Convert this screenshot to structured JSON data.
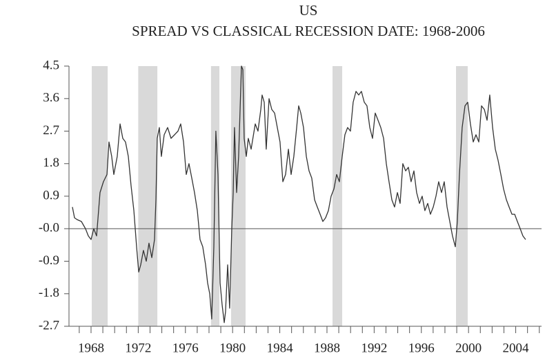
{
  "chart_data": {
    "type": "line",
    "title": "US",
    "subtitle": "SPREAD VS CLASSICAL RECESSION DATE: 1968-2006",
    "shaded_periods": [
      [
        1968.06,
        1969.41
      ],
      [
        1972.0,
        1973.62
      ],
      [
        1978.17,
        1978.88
      ],
      [
        1979.87,
        1981.1
      ],
      [
        1988.47,
        1989.29
      ],
      [
        1998.94,
        1999.93
      ]
    ],
    "shade_color": "#d9d9d9",
    "xlim": [
      1966.13,
      2006.19
    ],
    "xticks": [
      1968,
      1972,
      1976,
      1980,
      1984,
      1988,
      1992,
      1996,
      2000,
      2004
    ],
    "xminorticks": [
      1967,
      1968,
      1969,
      1970,
      1971,
      1972,
      1973,
      1974,
      1975,
      1976,
      1977,
      1978,
      1979,
      1980,
      1981,
      1982,
      1983,
      1984,
      1985,
      1986,
      1987,
      1988,
      1989,
      1990,
      1991,
      1992,
      1993,
      1994,
      1995,
      1996,
      1997,
      1998,
      1999,
      2000,
      2001,
      2002,
      2003,
      2004,
      2005,
      2006
    ],
    "ylim": [
      -2.7,
      4.5
    ],
    "yticks": [
      4.5,
      3.6,
      2.7,
      1.8,
      0.9,
      {
        "value": 0,
        "label": "-0.0"
      },
      -0.9,
      -1.8,
      -2.7
    ],
    "x": [
      1966.42,
      1966.6,
      1966.83,
      1967.18,
      1967.53,
      1967.77,
      1968.0,
      1968.23,
      1968.47,
      1968.76,
      1969.05,
      1969.35,
      1969.52,
      1969.75,
      1969.93,
      1970.22,
      1970.46,
      1970.69,
      1970.92,
      1971.16,
      1971.39,
      1971.63,
      1971.86,
      1972.04,
      1972.21,
      1972.44,
      1972.68,
      1972.91,
      1973.15,
      1973.38,
      1973.5,
      1973.61,
      1973.79,
      1973.96,
      1974.2,
      1974.49,
      1974.78,
      1975.08,
      1975.37,
      1975.6,
      1975.84,
      1976.07,
      1976.3,
      1976.54,
      1976.77,
      1977.01,
      1977.24,
      1977.47,
      1977.71,
      1977.88,
      1978.06,
      1978.23,
      1978.41,
      1978.58,
      1978.76,
      1978.94,
      1979.11,
      1979.29,
      1979.4,
      1979.58,
      1979.75,
      1979.93,
      1980.05,
      1980.16,
      1980.34,
      1980.51,
      1980.75,
      1980.87,
      1980.98,
      1981.16,
      1981.33,
      1981.57,
      1981.92,
      1982.15,
      1982.39,
      1982.5,
      1982.68,
      1982.85,
      1983.09,
      1983.32,
      1983.56,
      1983.79,
      1984.02,
      1984.26,
      1984.49,
      1984.73,
      1984.96,
      1985.19,
      1985.43,
      1985.6,
      1985.78,
      1986.01,
      1986.25,
      1986.48,
      1986.71,
      1986.95,
      1987.18,
      1987.42,
      1987.65,
      1987.88,
      1988.12,
      1988.35,
      1988.59,
      1988.82,
      1989.05,
      1989.29,
      1989.52,
      1989.75,
      1989.99,
      1990.22,
      1990.46,
      1990.69,
      1990.92,
      1991.16,
      1991.39,
      1991.63,
      1991.86,
      1992.09,
      1992.33,
      1992.56,
      1992.8,
      1993.03,
      1993.26,
      1993.5,
      1993.73,
      1993.97,
      1994.2,
      1994.43,
      1994.67,
      1994.9,
      1995.13,
      1995.37,
      1995.6,
      1995.84,
      1996.07,
      1996.3,
      1996.54,
      1996.77,
      1997.01,
      1997.24,
      1997.47,
      1997.71,
      1997.94,
      1998.18,
      1998.41,
      1998.64,
      1998.88,
      1999.05,
      1999.23,
      1999.46,
      1999.7,
      1999.93,
      2000.16,
      2000.4,
      2000.63,
      2000.87,
      2001.1,
      2001.34,
      2001.57,
      2001.8,
      2002.04,
      2002.27,
      2002.5,
      2002.74,
      2002.97,
      2003.21,
      2003.44,
      2003.68,
      2003.91,
      2004.14,
      2004.38,
      2004.61,
      2004.84
    ],
    "series": [
      {
        "color": "#333333",
        "values": [
          0.6,
          0.3,
          0.25,
          0.2,
          0.0,
          -0.2,
          -0.3,
          0.0,
          -0.2,
          1.0,
          1.3,
          1.5,
          2.4,
          2.0,
          1.5,
          2.0,
          2.9,
          2.5,
          2.4,
          2.0,
          1.2,
          0.5,
          -0.5,
          -1.2,
          -1.0,
          -0.6,
          -0.9,
          -0.4,
          -0.8,
          -0.3,
          0.8,
          2.5,
          2.8,
          2.0,
          2.6,
          2.8,
          2.5,
          2.6,
          2.7,
          2.9,
          2.4,
          1.5,
          1.8,
          1.4,
          1.0,
          0.5,
          -0.3,
          -0.5,
          -1.0,
          -1.5,
          -1.8,
          -2.5,
          -0.5,
          2.7,
          1.5,
          -1.5,
          -2.1,
          -2.6,
          -2.3,
          -1.0,
          -2.2,
          0.0,
          1.0,
          2.8,
          1.0,
          2.0,
          4.5,
          4.4,
          2.5,
          2.0,
          2.5,
          2.2,
          2.9,
          2.7,
          3.3,
          3.7,
          3.5,
          2.2,
          3.6,
          3.3,
          3.2,
          2.8,
          2.4,
          1.3,
          1.5,
          2.2,
          1.5,
          2.0,
          2.8,
          3.4,
          3.2,
          2.8,
          2.0,
          1.6,
          1.4,
          0.8,
          0.6,
          0.4,
          0.2,
          0.3,
          0.5,
          0.9,
          1.1,
          1.5,
          1.3,
          2.0,
          2.6,
          2.8,
          2.7,
          3.5,
          3.8,
          3.7,
          3.8,
          3.5,
          3.4,
          2.8,
          2.5,
          3.2,
          3.0,
          2.8,
          2.5,
          1.8,
          1.3,
          0.8,
          0.6,
          1.0,
          0.7,
          1.8,
          1.6,
          1.7,
          1.3,
          1.6,
          1.0,
          0.7,
          0.9,
          0.5,
          0.7,
          0.4,
          0.6,
          0.9,
          1.3,
          1.0,
          1.3,
          0.6,
          0.2,
          -0.2,
          -0.5,
          0.2,
          1.5,
          2.8,
          3.4,
          3.5,
          2.9,
          2.4,
          2.6,
          2.4,
          3.4,
          3.3,
          3.0,
          3.7,
          2.8,
          2.2,
          1.9,
          1.5,
          1.1,
          0.8,
          0.6,
          0.4,
          0.4,
          0.2,
          0.0,
          -0.2,
          -0.3
        ]
      }
    ]
  }
}
